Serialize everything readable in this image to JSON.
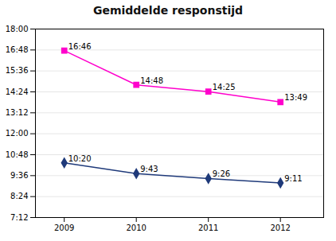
{
  "chart_data": {
    "type": "line",
    "title": "Gemiddelde responstijd",
    "x": [
      2009,
      2010,
      2011,
      2012
    ],
    "xlim": [
      2008.6,
      2012.6
    ],
    "xticks": [
      2009,
      2010,
      2011,
      2012
    ],
    "ylim": [
      432,
      1080
    ],
    "yticks": [
      {
        "value": 432,
        "label": "7:12"
      },
      {
        "value": 504,
        "label": "8:24"
      },
      {
        "value": 576,
        "label": "9:36"
      },
      {
        "value": 648,
        "label": "10:48"
      },
      {
        "value": 720,
        "label": "12:00"
      },
      {
        "value": 792,
        "label": "13:12"
      },
      {
        "value": 864,
        "label": "14:24"
      },
      {
        "value": 936,
        "label": "15:36"
      },
      {
        "value": 1008,
        "label": "16:48"
      },
      {
        "value": 1080,
        "label": "18:00"
      }
    ],
    "grid": "y",
    "data_labels": true,
    "series": [
      {
        "color": "#1F3A7A",
        "marker": "diamond",
        "values": [
          620,
          583,
          566,
          551
        ],
        "value_labels": [
          "10:20",
          "9:43",
          "9:26",
          "9:11"
        ]
      },
      {
        "color": "#FF00CC",
        "marker": "square",
        "values": [
          1006,
          888,
          865,
          829
        ],
        "value_labels": [
          "16:46",
          "14:48",
          "14:25",
          "13:49"
        ]
      }
    ]
  }
}
